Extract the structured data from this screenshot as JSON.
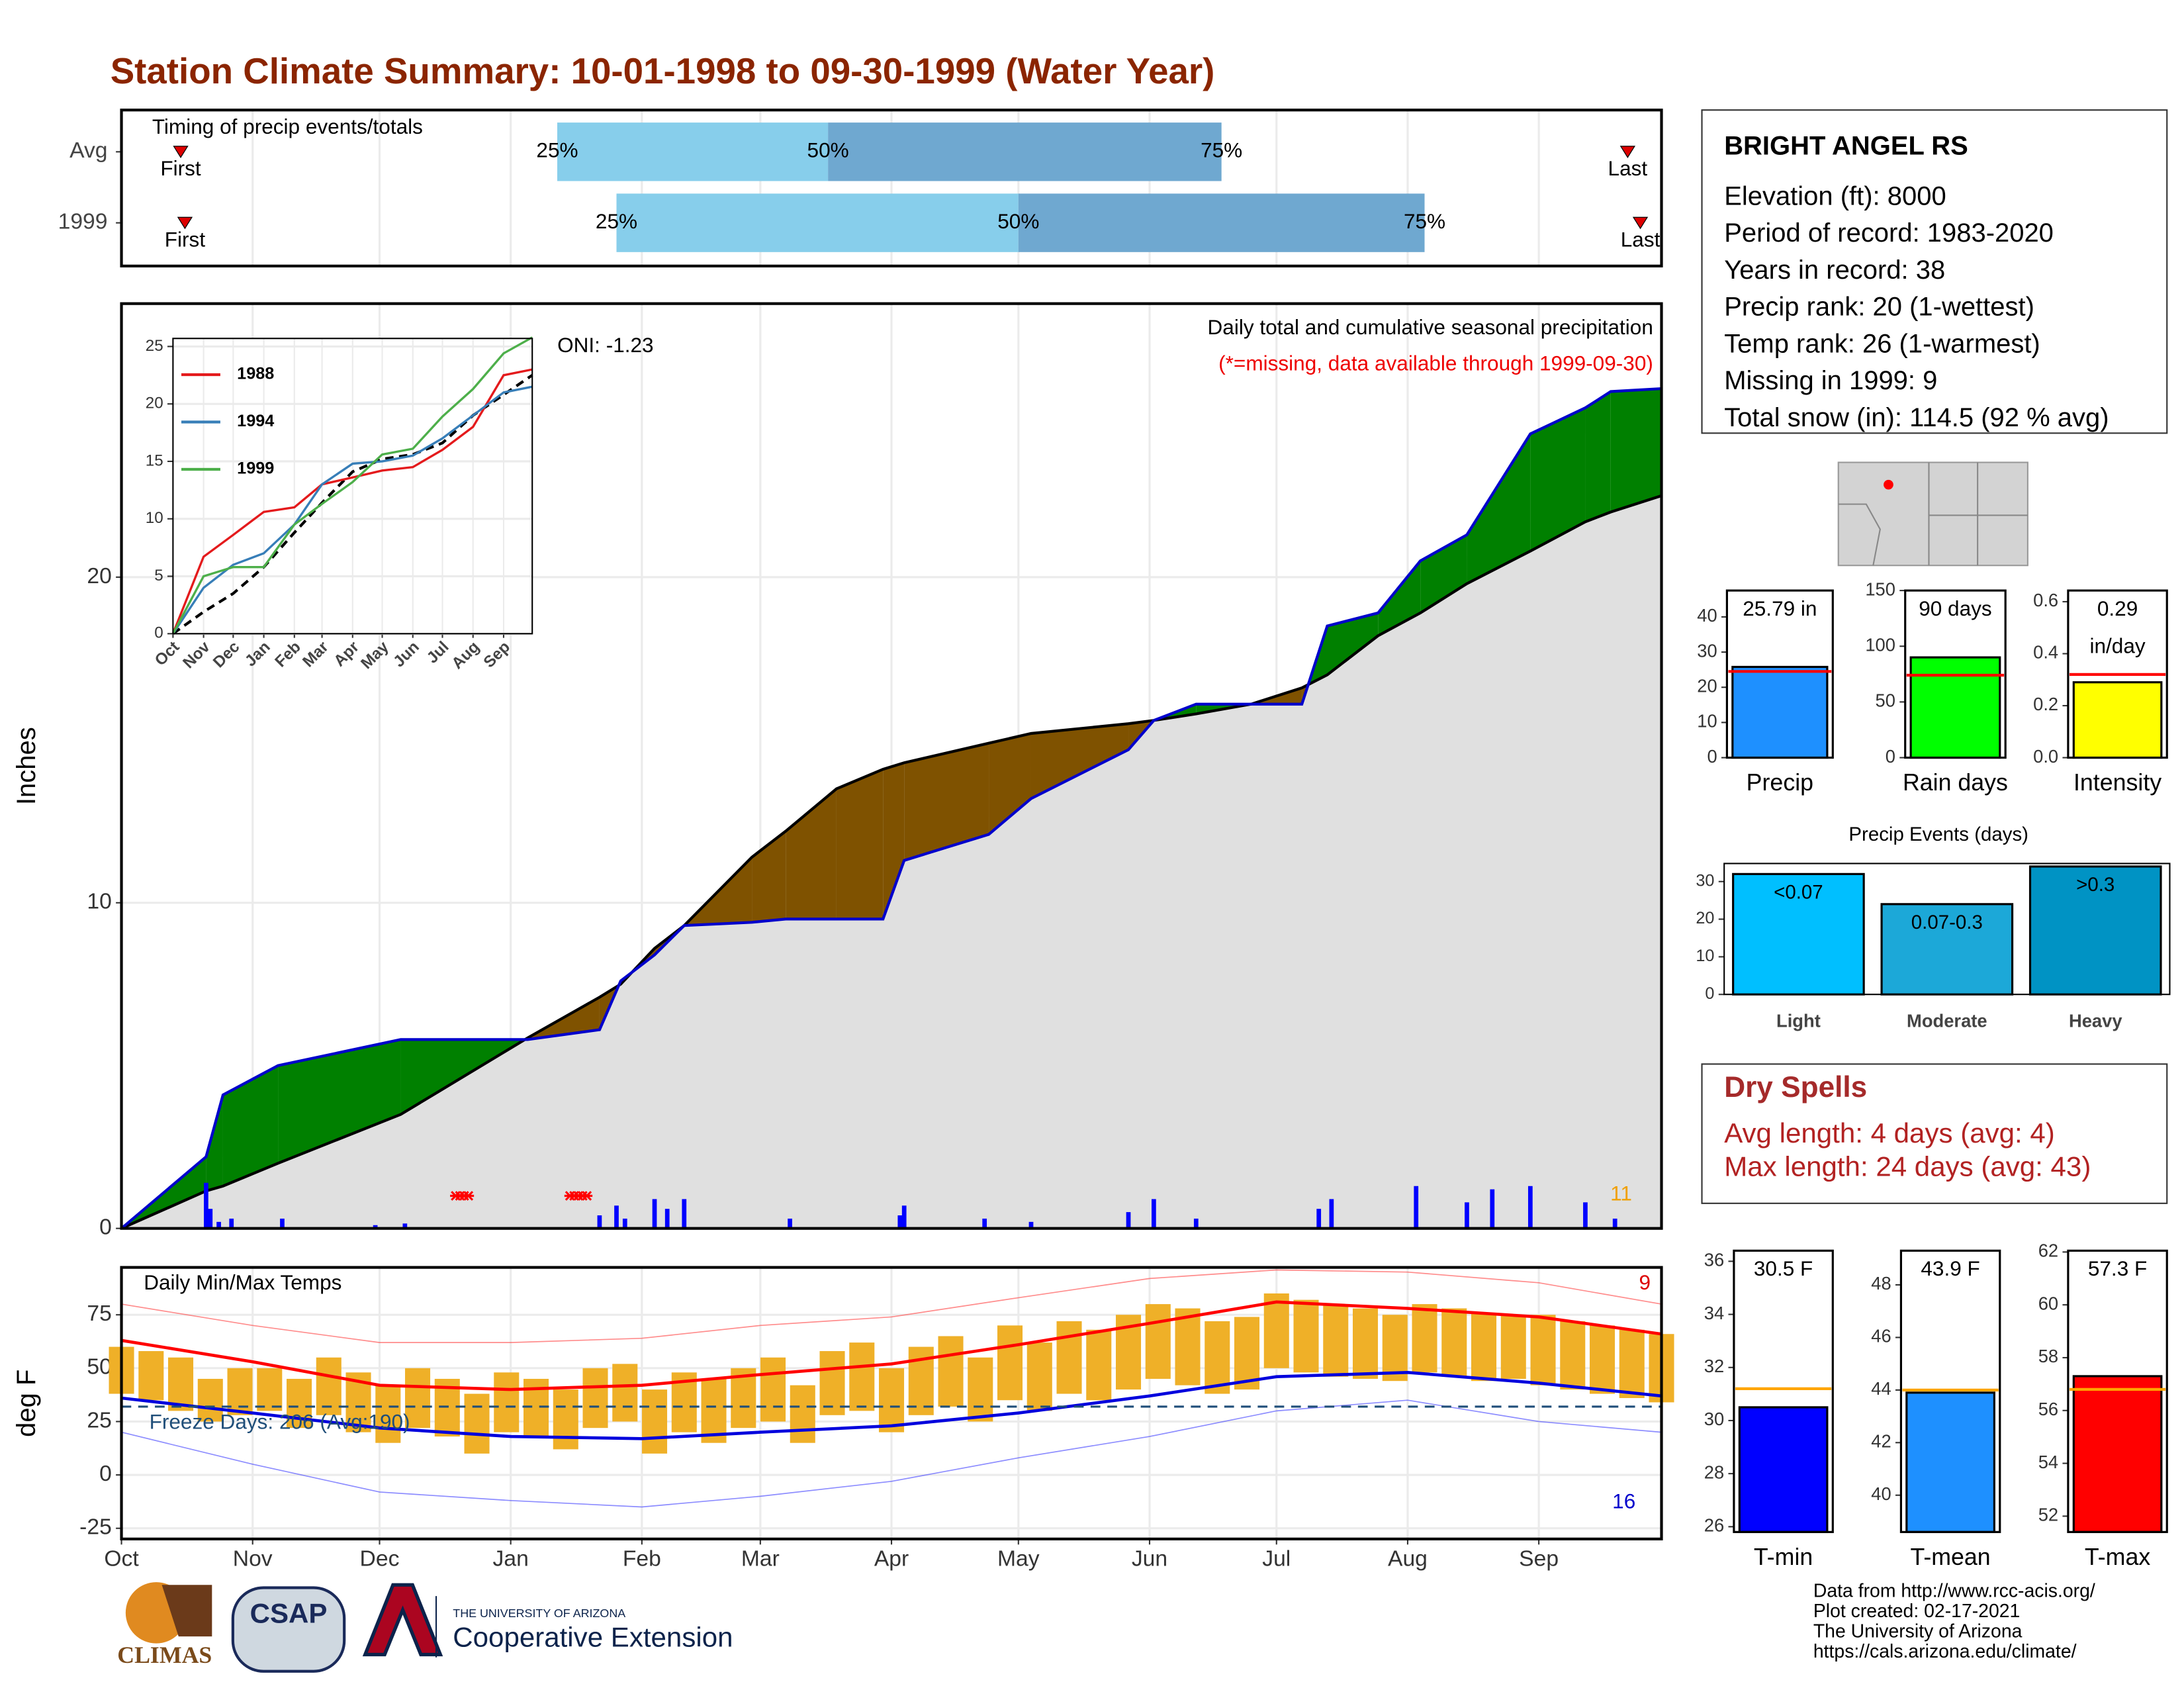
{
  "title": "Station Climate Summary: 10-01-1998 to 09-30-1999 (Water Year)",
  "station": {
    "name": "BRIGHT ANGEL RS",
    "lines": [
      "Elevation (ft): 8000",
      "Period of record: 1983-2020",
      "Years in record: 38",
      "Precip rank: 20 (1-wettest)",
      "Temp rank: 26 (1-warmest)",
      "Missing in 1999: 9",
      "Total snow (in): 114.5 (92 % avg)"
    ]
  },
  "dry_spells": {
    "title": "Dry Spells",
    "lines": [
      "Avg length: 4 days (avg: 4)",
      "Max length: 24 days (avg: 43)"
    ]
  },
  "footer": {
    "credits": [
      "Data from http://www.rcc-acis.org/",
      "Plot created: 02-17-2021",
      "The University of Arizona",
      "https://cals.arizona.edu/climate/"
    ],
    "logos": [
      "CLIMAS",
      "CSAP",
      "THE UNIVERSITY OF ARIZONA",
      "Cooperative Extension"
    ]
  },
  "chart_data": [
    {
      "type": "timing",
      "title": "Timing of precip events/totals",
      "xlim": [
        0,
        364
      ],
      "xticks": [
        0,
        31,
        61,
        92,
        123,
        151,
        182,
        212,
        243,
        273,
        304,
        335
      ],
      "grid": true,
      "labels": [
        "First",
        "25%",
        "50%",
        "75%",
        "Last"
      ],
      "colors": [
        "#87ceeb",
        "#6fa8d0"
      ],
      "marker_color": "#dd0000",
      "rows": [
        {
          "name": "Avg",
          "values": [
            14,
            103,
            167,
            260,
            356
          ]
        },
        {
          "name": "1999",
          "values": [
            15,
            117,
            212,
            308,
            359
          ]
        }
      ]
    },
    {
      "type": "cumulative",
      "title": "Daily total and cumulative seasonal precipitation",
      "subtitle": "(*=missing, data available through 1999-09-30)",
      "note": "ONI: -1.23",
      "ylabel": "Inches",
      "xlim": [
        0,
        364
      ],
      "ylim": [
        0,
        28.4
      ],
      "yticks": [
        0,
        10,
        20
      ],
      "xticks": [
        0,
        31,
        61,
        92,
        123,
        151,
        182,
        212,
        243,
        273,
        304,
        335
      ],
      "grid": true,
      "x": [
        0,
        20,
        24,
        37,
        66,
        96,
        113,
        118,
        126,
        133,
        149,
        157,
        169,
        180,
        185,
        205,
        215,
        238,
        244,
        254,
        267,
        279,
        285,
        297,
        307,
        318,
        333,
        346,
        352,
        364
      ],
      "observed": {
        "color": "#0000cc",
        "values": [
          0,
          2.2,
          4.1,
          5.0,
          5.8,
          5.8,
          6.1,
          7.6,
          8.4,
          9.3,
          9.4,
          9.5,
          9.5,
          9.5,
          11.3,
          12.1,
          13.2,
          14.7,
          15.6,
          16.1,
          16.1,
          16.1,
          18.5,
          18.9,
          20.5,
          21.3,
          24.4,
          25.2,
          25.7,
          25.79
        ]
      },
      "average": {
        "color": "#000000",
        "fill": "#e0e0e0",
        "values": [
          0,
          1.15,
          1.3,
          2.0,
          3.5,
          5.85,
          7.1,
          7.5,
          8.6,
          9.3,
          11.4,
          12.2,
          13.5,
          14.1,
          14.3,
          14.9,
          15.2,
          15.5,
          15.6,
          15.8,
          16.1,
          16.6,
          17.0,
          18.2,
          18.9,
          19.8,
          20.8,
          21.7,
          22.0,
          22.5
        ]
      },
      "above_color": "#008000",
      "below_color": "#7f5200",
      "daily": {
        "color": "#0000ff",
        "x": [
          20,
          21,
          23,
          26,
          38,
          60,
          67,
          113,
          117,
          119,
          126,
          129,
          133,
          158,
          184,
          185,
          204,
          215,
          238,
          244,
          254,
          283,
          286,
          306,
          318,
          324,
          333,
          346,
          353
        ],
        "values": [
          1.4,
          0.6,
          0.2,
          0.3,
          0.3,
          0.1,
          0.15,
          0.4,
          0.7,
          0.3,
          0.9,
          0.6,
          0.9,
          0.3,
          0.4,
          0.7,
          0.3,
          0.2,
          0.5,
          0.9,
          0.3,
          0.6,
          0.9,
          1.3,
          0.8,
          1.2,
          1.3,
          0.8,
          0.3
        ]
      },
      "missing_x": [
        79,
        80,
        81,
        82,
        106,
        107,
        108,
        109,
        110
      ],
      "missing_level": 1.0,
      "missing_color": "#ff0000",
      "count_label": 11,
      "count_color": "#f0a000"
    },
    {
      "type": "line",
      "xlim": [
        0,
        364
      ],
      "ylim": [
        0,
        25.7
      ],
      "yticks": [
        0,
        5,
        10,
        15,
        20,
        25
      ],
      "grid": true,
      "xticks": [
        {
          "value": 0,
          "label": "Oct"
        },
        {
          "value": 31,
          "label": "Nov"
        },
        {
          "value": 61,
          "label": "Dec"
        },
        {
          "value": 92,
          "label": "Jan"
        },
        {
          "value": 123,
          "label": "Feb"
        },
        {
          "value": 151,
          "label": "Mar"
        },
        {
          "value": 182,
          "label": "Apr"
        },
        {
          "value": 212,
          "label": "May"
        },
        {
          "value": 243,
          "label": "Jun"
        },
        {
          "value": 273,
          "label": "Jul"
        },
        {
          "value": 304,
          "label": "Aug"
        },
        {
          "value": 335,
          "label": "Sep"
        }
      ],
      "x": [
        0,
        31,
        61,
        92,
        123,
        151,
        182,
        212,
        243,
        273,
        304,
        335,
        364
      ],
      "series": [
        {
          "name": "1988",
          "color": "#e41a1c",
          "values": [
            0,
            6.7,
            8.6,
            10.6,
            11.0,
            13.0,
            13.6,
            14.2,
            14.5,
            16.0,
            18.0,
            22.5,
            23.0
          ]
        },
        {
          "name": "1994",
          "color": "#377eb8",
          "values": [
            0,
            4.0,
            6.0,
            7.0,
            9.5,
            13.0,
            14.8,
            15.0,
            15.5,
            17.0,
            19.0,
            21.0,
            21.5
          ]
        },
        {
          "name": "1999",
          "color": "#4daf4a",
          "values": [
            0,
            5.0,
            5.8,
            5.8,
            9.5,
            11.3,
            13.2,
            15.6,
            16.1,
            18.9,
            21.3,
            24.4,
            25.79
          ]
        }
      ],
      "reference": {
        "color": "#000000",
        "values": [
          0,
          1.9,
          3.5,
          5.8,
          8.8,
          11.4,
          14.1,
          15.2,
          15.6,
          16.6,
          19.0,
          20.8,
          22.5
        ]
      }
    },
    {
      "type": "temperature",
      "title": "Daily Min/Max Temps",
      "ylabel": "deg F",
      "ylim": [
        -30,
        97.2
      ],
      "yticks": [
        -25,
        0,
        25,
        50,
        75
      ],
      "xlim": [
        0,
        364
      ],
      "grid": true,
      "xticks": [
        {
          "value": 0,
          "label": "Oct"
        },
        {
          "value": 31,
          "label": "Nov"
        },
        {
          "value": 61,
          "label": "Dec"
        },
        {
          "value": 92,
          "label": "Jan"
        },
        {
          "value": 123,
          "label": "Feb"
        },
        {
          "value": 151,
          "label": "Mar"
        },
        {
          "value": 182,
          "label": "Apr"
        },
        {
          "value": 212,
          "label": "May"
        },
        {
          "value": 243,
          "label": "Jun"
        },
        {
          "value": 273,
          "label": "Jul"
        },
        {
          "value": 304,
          "label": "Aug"
        },
        {
          "value": 335,
          "label": "Sep"
        }
      ],
      "freeze": 32,
      "freeze_label": "Freeze Days: 206 (Avg:190)",
      "hot_count": 9,
      "cold_count": 16,
      "daily": {
        "color": "#efb028",
        "x": [
          0,
          7,
          14,
          21,
          28,
          35,
          42,
          49,
          56,
          63,
          70,
          77,
          84,
          91,
          98,
          105,
          112,
          119,
          126,
          133,
          140,
          147,
          154,
          161,
          168,
          175,
          182,
          189,
          196,
          203,
          210,
          217,
          224,
          231,
          238,
          245,
          252,
          259,
          266,
          273,
          280,
          287,
          294,
          301,
          308,
          315,
          322,
          329,
          336,
          343,
          350,
          357,
          364
        ],
        "max": [
          60,
          58,
          55,
          45,
          50,
          50,
          45,
          55,
          48,
          42,
          50,
          45,
          38,
          48,
          45,
          40,
          50,
          52,
          40,
          48,
          45,
          50,
          55,
          42,
          58,
          62,
          50,
          60,
          65,
          55,
          70,
          62,
          72,
          68,
          75,
          80,
          78,
          72,
          74,
          85,
          82,
          80,
          78,
          75,
          80,
          78,
          76,
          75,
          75,
          72,
          70,
          68,
          66
        ],
        "min": [
          38,
          35,
          30,
          25,
          28,
          30,
          22,
          28,
          20,
          15,
          22,
          18,
          10,
          20,
          18,
          12,
          22,
          25,
          10,
          20,
          15,
          22,
          25,
          15,
          28,
          30,
          20,
          28,
          32,
          25,
          35,
          30,
          38,
          35,
          40,
          45,
          42,
          38,
          40,
          50,
          48,
          46,
          45,
          44,
          48,
          46,
          44,
          45,
          42,
          40,
          38,
          36,
          34
        ]
      },
      "normals": {
        "x": [
          0,
          31,
          61,
          92,
          123,
          151,
          182,
          212,
          243,
          273,
          304,
          335,
          364
        ],
        "max": [
          63,
          53,
          42,
          40,
          42,
          47,
          52,
          61,
          71,
          81,
          78,
          74,
          66
        ],
        "min": [
          36,
          29,
          22,
          18,
          17,
          20,
          23,
          29,
          37,
          46,
          48,
          43,
          37
        ],
        "max_color": "#ff0000",
        "min_color": "#0000dd"
      },
      "records": {
        "x": [
          0,
          31,
          61,
          92,
          123,
          151,
          182,
          212,
          243,
          273,
          304,
          335,
          364
        ],
        "max": [
          80,
          70,
          62,
          62,
          64,
          70,
          74,
          83,
          92,
          96,
          95,
          90,
          80
        ],
        "min": [
          20,
          5,
          -8,
          -12,
          -15,
          -10,
          -3,
          8,
          18,
          30,
          35,
          25,
          20
        ]
      }
    },
    {
      "type": "summary_bar",
      "categories": [
        "Precip"
      ],
      "values": [
        25.79
      ],
      "value_labels": [
        "25.79 in"
      ],
      "avg": 24.5,
      "avg_color": "#ff0000",
      "color": "#1e90ff",
      "ylim": [
        0,
        47.5
      ],
      "yticks": [
        0,
        10,
        20,
        30,
        40
      ]
    },
    {
      "type": "summary_bar",
      "categories": [
        "Rain days"
      ],
      "values": [
        90
      ],
      "value_labels": [
        "90 days"
      ],
      "avg": 74,
      "avg_color": "#ff0000",
      "color": "#00ff00",
      "ylim": [
        0,
        150
      ],
      "yticks": [
        0,
        50,
        100,
        150
      ]
    },
    {
      "type": "summary_bar",
      "categories": [
        "Intensity"
      ],
      "values": [
        0.29
      ],
      "value_labels": [
        "0.29"
      ],
      "unit": "in/day",
      "avg": 0.32,
      "avg_color": "#ff0000",
      "color": "#ffff00",
      "ylim": [
        0,
        0.643
      ],
      "yticks": [
        {
          "value": 0,
          "label": "0.0"
        },
        {
          "value": 0.2,
          "label": "0.2"
        },
        {
          "value": 0.4,
          "label": "0.4"
        },
        {
          "value": 0.6,
          "label": "0.6"
        }
      ]
    },
    {
      "type": "bar",
      "title": "Precip Events (days)",
      "categories": [
        "Light",
        "Moderate",
        "Heavy"
      ],
      "bin_labels": [
        "<0.07",
        "0.07-0.3",
        ">0.3"
      ],
      "values": [
        32,
        24,
        34
      ],
      "colors": [
        "#00bfff",
        "#1ca8d8",
        "#0093c4"
      ],
      "ylim": [
        0,
        34.8
      ],
      "yticks": [
        0,
        10,
        20,
        30
      ]
    },
    {
      "type": "summary_bar",
      "categories": [
        "T-min"
      ],
      "values": [
        30.5
      ],
      "value_labels": [
        "30.5 F"
      ],
      "avg": 31.2,
      "avg_color": "#ffa500",
      "color": "#0000ff",
      "ylim": [
        25.8,
        36.4
      ],
      "yticks": [
        26,
        28,
        30,
        32,
        34,
        36
      ]
    },
    {
      "type": "summary_bar",
      "categories": [
        "T-mean"
      ],
      "values": [
        43.9
      ],
      "value_labels": [
        "43.9 F"
      ],
      "avg": 44.0,
      "avg_color": "#ffa500",
      "color": "#1e90ff",
      "ylim": [
        38.6,
        49.3
      ],
      "yticks": [
        40,
        42,
        44,
        46,
        48
      ]
    },
    {
      "type": "summary_bar",
      "categories": [
        "T-max"
      ],
      "values": [
        57.3
      ],
      "value_labels": [
        "57.3 F"
      ],
      "avg": 56.8,
      "avg_color": "#ffa500",
      "color": "#ff0000",
      "ylim": [
        51.4,
        62.05
      ],
      "yticks": [
        52,
        54,
        56,
        58,
        60,
        62
      ]
    }
  ]
}
